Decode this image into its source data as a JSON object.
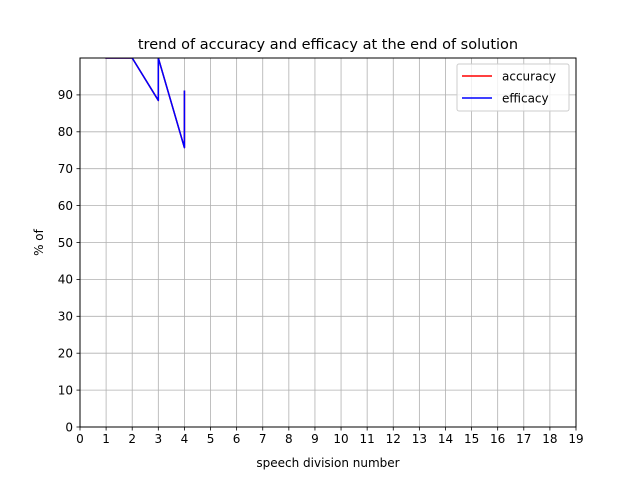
{
  "chart_data": {
    "type": "line",
    "title": "trend of accuracy and efficacy at the end of solution",
    "xlabel": "speech division number",
    "ylabel": "% of",
    "xlim": [
      0,
      19
    ],
    "ylim": [
      0,
      100
    ],
    "xticks": [
      0,
      1,
      2,
      3,
      4,
      5,
      6,
      7,
      8,
      9,
      10,
      11,
      12,
      13,
      14,
      15,
      16,
      17,
      18,
      19
    ],
    "yticks": [
      0,
      10,
      20,
      30,
      40,
      50,
      60,
      70,
      80,
      90
    ],
    "grid": true,
    "legend_position": "top-right",
    "series": [
      {
        "name": "accuracy",
        "color": "#ff0000",
        "x": [
          1,
          2,
          3,
          3,
          4,
          4
        ],
        "y": [
          100,
          100,
          88.5,
          100,
          75.7,
          91
        ]
      },
      {
        "name": "efficacy",
        "color": "#0000ff",
        "x": [
          1,
          2,
          3,
          3,
          4,
          4
        ],
        "y": [
          100,
          100,
          88.5,
          100,
          75.7,
          91
        ]
      }
    ]
  }
}
